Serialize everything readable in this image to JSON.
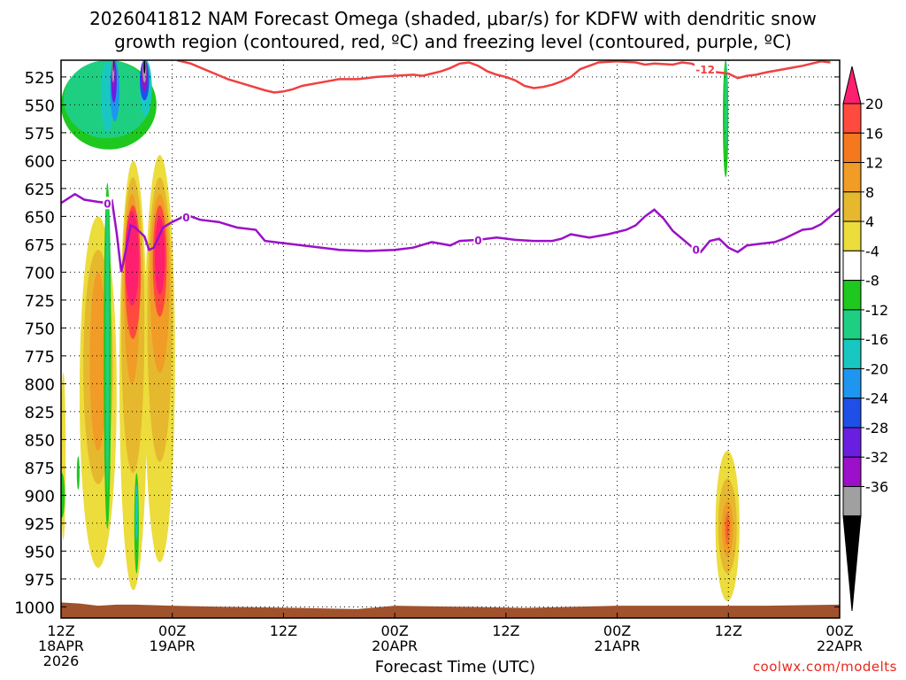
{
  "chart_data": {
    "type": "heatmap",
    "title_line1": "2026041812 NAM Forecast Omega (shaded, μbar/s) for KDFW with dendritic snow",
    "title_line2": "growth region (contoured, red, ºC) and freezing level (contoured, purple, ºC)",
    "xlabel": "Forecast Time (UTC)",
    "credit": "coolwx.com/modelts",
    "y_axis": {
      "scale": "pressure",
      "inverted": true,
      "range": [
        510,
        1010
      ],
      "ticks": [
        525,
        550,
        575,
        600,
        625,
        650,
        675,
        700,
        725,
        750,
        775,
        800,
        825,
        850,
        875,
        900,
        925,
        950,
        975,
        1000
      ]
    },
    "x_axis": {
      "range_hours": [
        0,
        84
      ],
      "ticks": [
        {
          "hour": 0,
          "line1": "12Z",
          "line2": "18APR",
          "line3": "2026"
        },
        {
          "hour": 12,
          "line1": "00Z",
          "line2": "19APR",
          "line3": ""
        },
        {
          "hour": 24,
          "line1": "12Z",
          "line2": "",
          "line3": ""
        },
        {
          "hour": 36,
          "line1": "00Z",
          "line2": "20APR",
          "line3": ""
        },
        {
          "hour": 48,
          "line1": "12Z",
          "line2": "",
          "line3": ""
        },
        {
          "hour": 60,
          "line1": "00Z",
          "line2": "21APR",
          "line3": ""
        },
        {
          "hour": 72,
          "line1": "12Z",
          "line2": "",
          "line3": ""
        },
        {
          "hour": 84,
          "line1": "00Z",
          "line2": "22APR",
          "line3": ""
        }
      ]
    },
    "grid": true,
    "colorbar": {
      "labels": [
        "20",
        "16",
        "12",
        "8",
        "4",
        "-4",
        "-8",
        "-12",
        "-16",
        "-20",
        "-24",
        "-28",
        "-32",
        "-36"
      ],
      "colors": [
        "#ff1f6f",
        "#ff4a3d",
        "#f5781e",
        "#f09c26",
        "#e6b82e",
        "#ecdc3c",
        "#ffffff",
        "#1ec81e",
        "#1ecf82",
        "#18c8c0",
        "#1e96f0",
        "#1e50e8",
        "#6a1ee0",
        "#9b10c8",
        "#a0a0a0",
        "#000000"
      ]
    },
    "freezing_level": {
      "label": "0",
      "color": "#9b10c8",
      "points": [
        [
          0,
          638
        ],
        [
          1.5,
          630
        ],
        [
          2.5,
          635
        ],
        [
          4,
          637
        ],
        [
          5,
          638
        ],
        [
          5.5,
          636
        ],
        [
          6,
          665
        ],
        [
          6.5,
          700
        ],
        [
          7,
          680
        ],
        [
          7.5,
          658
        ],
        [
          8,
          660
        ],
        [
          9,
          668
        ],
        [
          9.5,
          680
        ],
        [
          10,
          678
        ],
        [
          11,
          660
        ],
        [
          12,
          655
        ],
        [
          13,
          651
        ],
        [
          14,
          650
        ],
        [
          15,
          653
        ],
        [
          17,
          655
        ],
        [
          19,
          660
        ],
        [
          21,
          662
        ],
        [
          22,
          672
        ],
        [
          24,
          674
        ],
        [
          27,
          677
        ],
        [
          30,
          680
        ],
        [
          33,
          681
        ],
        [
          36,
          680
        ],
        [
          38,
          678
        ],
        [
          40,
          673
        ],
        [
          42,
          676
        ],
        [
          43,
          672
        ],
        [
          45,
          671
        ],
        [
          47,
          669
        ],
        [
          49,
          671
        ],
        [
          51,
          672
        ],
        [
          53,
          672
        ],
        [
          54,
          670
        ],
        [
          55,
          666
        ],
        [
          57,
          669
        ],
        [
          59,
          666
        ],
        [
          61,
          662
        ],
        [
          62,
          658
        ],
        [
          63,
          650
        ],
        [
          64,
          644
        ],
        [
          65,
          652
        ],
        [
          66,
          663
        ],
        [
          67,
          670
        ],
        [
          68,
          677
        ],
        [
          69,
          682
        ],
        [
          70,
          672
        ],
        [
          71,
          670
        ],
        [
          72,
          678
        ],
        [
          73,
          682
        ],
        [
          74,
          676
        ],
        [
          75,
          675
        ],
        [
          77,
          673
        ],
        [
          78,
          670
        ],
        [
          80,
          662
        ],
        [
          81,
          661
        ],
        [
          82,
          657
        ],
        [
          83,
          650
        ],
        [
          84,
          643
        ]
      ],
      "label_hours": [
        5,
        13.5,
        45,
        68.5
      ]
    },
    "dgz_minus12": {
      "label": "-12",
      "color": "#f04040",
      "points": [
        [
          12.5,
          510
        ],
        [
          14,
          513
        ],
        [
          16,
          520
        ],
        [
          18,
          527
        ],
        [
          20,
          532
        ],
        [
          22,
          537
        ],
        [
          23,
          539
        ],
        [
          24,
          538
        ],
        [
          25,
          536
        ],
        [
          26,
          533
        ],
        [
          28,
          530
        ],
        [
          30,
          527
        ],
        [
          32,
          527
        ],
        [
          33,
          526
        ],
        [
          34,
          525
        ],
        [
          36,
          524
        ],
        [
          38,
          523
        ],
        [
          39,
          524
        ],
        [
          40,
          522
        ],
        [
          41,
          520
        ],
        [
          42,
          517
        ],
        [
          43,
          513
        ],
        [
          44,
          512
        ],
        [
          45,
          515
        ],
        [
          46,
          520
        ],
        [
          47,
          523
        ],
        [
          48,
          525
        ],
        [
          49,
          528
        ],
        [
          50,
          533
        ],
        [
          51,
          535
        ],
        [
          52,
          534
        ],
        [
          53,
          532
        ],
        [
          54,
          529
        ],
        [
          55,
          525
        ],
        [
          56,
          518
        ],
        [
          57,
          515
        ],
        [
          58,
          512
        ],
        [
          60,
          511
        ],
        [
          62,
          512
        ],
        [
          63,
          514
        ],
        [
          64,
          513
        ],
        [
          66,
          514
        ],
        [
          67,
          512
        ],
        [
          68,
          513
        ],
        [
          69,
          516
        ],
        [
          70,
          520
        ],
        [
          72,
          522
        ],
        [
          73,
          526
        ],
        [
          74,
          524
        ],
        [
          75,
          523
        ],
        [
          76,
          521
        ],
        [
          78,
          518
        ],
        [
          80,
          515
        ],
        [
          82,
          511
        ],
        [
          83,
          512
        ]
      ],
      "label_hour": 69.5
    },
    "ground": {
      "color": "#a0522d"
    }
  }
}
